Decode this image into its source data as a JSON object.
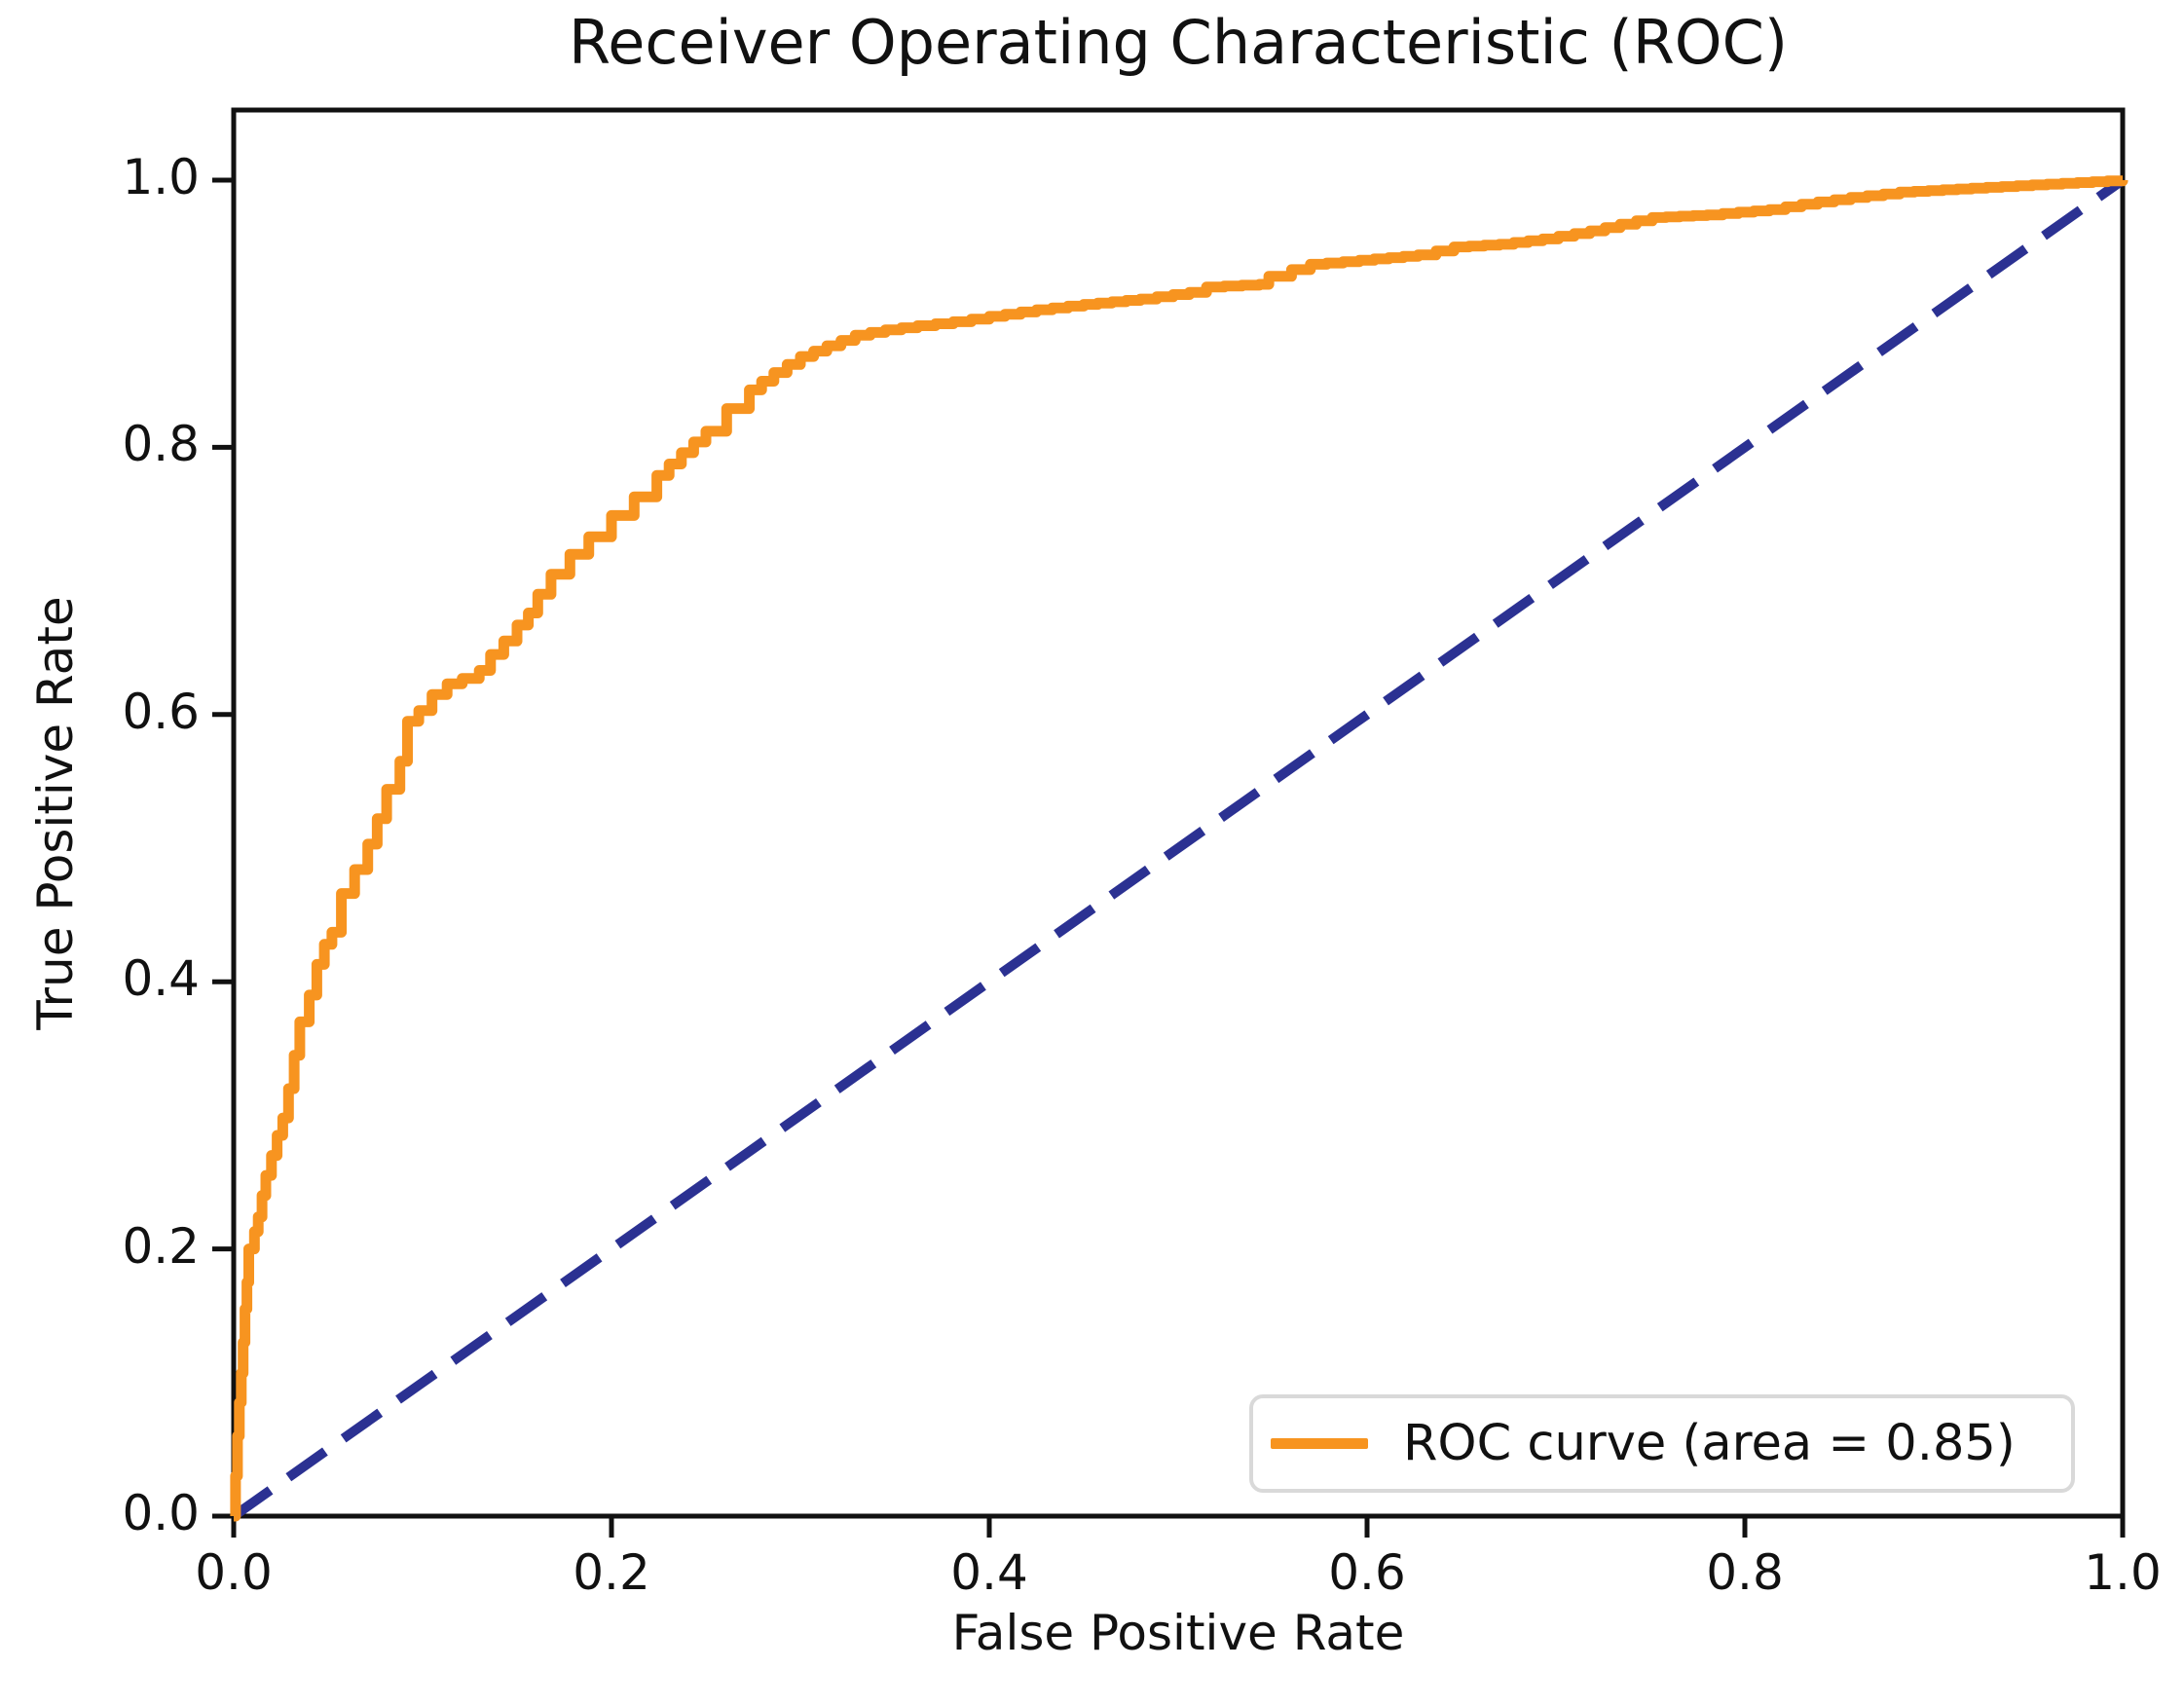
{
  "title": "Receiver Operating Characteristic (ROC)",
  "x_axis": {
    "label": "False Positive Rate",
    "ticks": [
      "0.0",
      "0.2",
      "0.4",
      "0.6",
      "0.8",
      "1.0"
    ]
  },
  "y_axis": {
    "label": "True Positive Rate",
    "ticks": [
      "0.0",
      "0.2",
      "0.4",
      "0.6",
      "0.8",
      "1.0"
    ]
  },
  "legend": {
    "label": "ROC curve (area = 0.85)",
    "position": "lower right"
  },
  "colors": {
    "roc_curve": "#f79420",
    "chance_line": "#2b3192",
    "axes": "#111111",
    "legend_border": "#d9d9d9",
    "background": "#ffffff"
  },
  "chart_data": {
    "type": "line",
    "title": "Receiver Operating Characteristic (ROC)",
    "xlabel": "False Positive Rate",
    "ylabel": "True Positive Rate",
    "xlim": [
      0,
      1.0
    ],
    "ylim": [
      0,
      1.05
    ],
    "grid": false,
    "legend_position": "lower right",
    "auc": 0.85,
    "x_tick_values": [
      0.0,
      0.2,
      0.4,
      0.6,
      0.8,
      1.0
    ],
    "y_tick_values": [
      0.0,
      0.2,
      0.4,
      0.6,
      0.8,
      1.0
    ],
    "series": [
      {
        "name": "ROC curve (area = 0.85)",
        "style": "solid-step",
        "color": "#f79420",
        "points": [
          [
            0.0,
            0.0
          ],
          [
            0.001,
            0.03
          ],
          [
            0.002,
            0.06
          ],
          [
            0.003,
            0.085
          ],
          [
            0.004,
            0.107
          ],
          [
            0.005,
            0.13
          ],
          [
            0.006,
            0.155
          ],
          [
            0.007,
            0.175
          ],
          [
            0.008,
            0.2
          ],
          [
            0.011,
            0.213
          ],
          [
            0.013,
            0.224
          ],
          [
            0.015,
            0.24
          ],
          [
            0.017,
            0.255
          ],
          [
            0.02,
            0.27
          ],
          [
            0.023,
            0.285
          ],
          [
            0.026,
            0.298
          ],
          [
            0.029,
            0.32
          ],
          [
            0.032,
            0.345
          ],
          [
            0.035,
            0.37
          ],
          [
            0.04,
            0.39
          ],
          [
            0.044,
            0.413
          ],
          [
            0.048,
            0.428
          ],
          [
            0.052,
            0.437
          ],
          [
            0.057,
            0.466
          ],
          [
            0.064,
            0.484
          ],
          [
            0.071,
            0.503
          ],
          [
            0.076,
            0.522
          ],
          [
            0.081,
            0.544
          ],
          [
            0.088,
            0.565
          ],
          [
            0.092,
            0.595
          ],
          [
            0.098,
            0.603
          ],
          [
            0.105,
            0.615
          ],
          [
            0.113,
            0.623
          ],
          [
            0.121,
            0.627
          ],
          [
            0.13,
            0.633
          ],
          [
            0.136,
            0.645
          ],
          [
            0.143,
            0.655
          ],
          [
            0.15,
            0.667
          ],
          [
            0.156,
            0.676
          ],
          [
            0.161,
            0.69
          ],
          [
            0.168,
            0.705
          ],
          [
            0.178,
            0.72
          ],
          [
            0.188,
            0.733
          ],
          [
            0.2,
            0.749
          ],
          [
            0.212,
            0.763
          ],
          [
            0.224,
            0.779
          ],
          [
            0.237,
            0.796
          ],
          [
            0.25,
            0.812
          ],
          [
            0.261,
            0.829
          ],
          [
            0.273,
            0.843
          ],
          [
            0.286,
            0.856
          ],
          [
            0.3,
            0.868
          ],
          [
            0.314,
            0.876
          ],
          [
            0.329,
            0.884
          ],
          [
            0.345,
            0.888
          ],
          [
            0.362,
            0.891
          ],
          [
            0.381,
            0.894
          ],
          [
            0.4,
            0.898
          ],
          [
            0.425,
            0.903
          ],
          [
            0.45,
            0.907
          ],
          [
            0.48,
            0.911
          ],
          [
            0.506,
            0.916
          ],
          [
            0.515,
            0.92
          ],
          [
            0.543,
            0.922
          ],
          [
            0.548,
            0.928
          ],
          [
            0.56,
            0.933
          ],
          [
            0.57,
            0.937
          ],
          [
            0.596,
            0.94
          ],
          [
            0.627,
            0.944
          ],
          [
            0.646,
            0.95
          ],
          [
            0.67,
            0.952
          ],
          [
            0.693,
            0.956
          ],
          [
            0.718,
            0.962
          ],
          [
            0.734,
            0.967
          ],
          [
            0.751,
            0.972
          ],
          [
            0.78,
            0.974
          ],
          [
            0.813,
            0.978
          ],
          [
            0.83,
            0.982
          ],
          [
            0.856,
            0.987
          ],
          [
            0.882,
            0.991
          ],
          [
            0.92,
            0.994
          ],
          [
            0.96,
            0.997
          ],
          [
            1.0,
            1.0
          ]
        ]
      },
      {
        "name": "chance-diagonal",
        "style": "dashed",
        "color": "#2b3192",
        "points": [
          [
            0.0,
            0.0
          ],
          [
            1.0,
            1.0
          ]
        ]
      }
    ]
  }
}
